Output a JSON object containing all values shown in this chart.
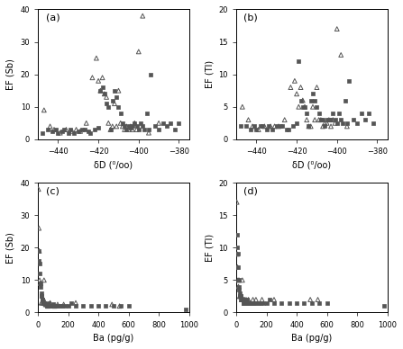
{
  "panel_a": {
    "label": "(a)",
    "xlabel": "δD (⁰/oo)",
    "ylabel": "EF (Sb)",
    "xlim": [
      -450,
      -375
    ],
    "ylim": [
      0,
      40
    ],
    "xticks": [
      -440,
      -420,
      -400,
      -380
    ],
    "yticks": [
      0,
      10,
      20,
      30,
      40
    ],
    "squares_x": [
      -448,
      -445,
      -443,
      -441,
      -440,
      -438,
      -437,
      -435,
      -434,
      -432,
      -430,
      -428,
      -427,
      -425,
      -424,
      -422,
      -420,
      -419,
      -418,
      -417,
      -416,
      -415,
      -414,
      -413,
      -412,
      -411,
      -410,
      -409,
      -408,
      -407,
      -406,
      -405,
      -404,
      -403,
      -402,
      -401,
      -400,
      -399,
      -398,
      -397,
      -396,
      -395,
      -394,
      -392,
      -390,
      -388,
      -386,
      -384,
      -382,
      -380
    ],
    "squares_y": [
      2,
      3,
      2.5,
      3,
      2,
      2.5,
      3,
      2,
      3,
      2,
      2.5,
      3,
      3,
      2.5,
      2,
      3,
      3.5,
      15,
      16,
      14,
      11,
      10,
      3,
      12,
      15,
      13,
      10,
      8,
      5,
      4,
      3,
      4,
      3.5,
      4,
      5,
      4,
      3,
      5,
      4,
      3,
      8,
      3,
      20,
      4,
      3,
      5,
      4,
      5,
      3,
      5
    ],
    "triangles_x": [
      -447,
      -444,
      -442,
      -439,
      -436,
      -433,
      -431,
      -429,
      -426,
      -423,
      -421,
      -420,
      -419,
      -418,
      -417,
      -416,
      -415,
      -414,
      -413,
      -412,
      -411,
      -410,
      -409,
      -408,
      -407,
      -406,
      -405,
      -404,
      -403,
      -402,
      -401,
      -400,
      -398,
      -395,
      -390
    ],
    "triangles_y": [
      9,
      4,
      3,
      2,
      3,
      2.5,
      3,
      2.5,
      5,
      19,
      25,
      18,
      15,
      19,
      14,
      13,
      5,
      3,
      4,
      11,
      4,
      15,
      5,
      4,
      3,
      4,
      3,
      4,
      3,
      5,
      3,
      27,
      38,
      2,
      5
    ]
  },
  "panel_b": {
    "label": "(b)",
    "xlabel": "δD (⁰/oo)",
    "ylabel": "EF (Tl)",
    "xlim": [
      -450,
      -375
    ],
    "ylim": [
      0,
      20
    ],
    "xticks": [
      -440,
      -420,
      -400,
      -380
    ],
    "yticks": [
      0,
      5,
      10,
      15,
      20
    ],
    "squares_x": [
      -448,
      -445,
      -443,
      -441,
      -440,
      -438,
      -437,
      -435,
      -434,
      -432,
      -430,
      -428,
      -427,
      -425,
      -424,
      -422,
      -420,
      -419,
      -418,
      -417,
      -416,
      -415,
      -414,
      -413,
      -412,
      -411,
      -410,
      -409,
      -408,
      -407,
      -406,
      -405,
      -404,
      -403,
      -402,
      -401,
      -400,
      -399,
      -398,
      -397,
      -396,
      -395,
      -394,
      -392,
      -390,
      -388,
      -386,
      -384,
      -382
    ],
    "squares_y": [
      2,
      2,
      1.5,
      2,
      1.5,
      2,
      2,
      1.5,
      2,
      1.5,
      2,
      2,
      2,
      1.5,
      1.5,
      2,
      2.5,
      12,
      6,
      5,
      5,
      4,
      2,
      6,
      7,
      6,
      5,
      4,
      3,
      3,
      2,
      3,
      3,
      3,
      4,
      3,
      2.5,
      4,
      3,
      2.5,
      6,
      2.5,
      9,
      3,
      2.5,
      4,
      3,
      4,
      2.5
    ],
    "triangles_x": [
      -447,
      -444,
      -442,
      -439,
      -436,
      -433,
      -431,
      -429,
      -426,
      -423,
      -421,
      -420,
      -419,
      -418,
      -417,
      -416,
      -415,
      -414,
      -413,
      -412,
      -411,
      -410,
      -409,
      -408,
      -407,
      -406,
      -405,
      -404,
      -403,
      -402,
      -401,
      -400,
      -398,
      -395
    ],
    "triangles_y": [
      5,
      3,
      2,
      1.5,
      2,
      2,
      2,
      2,
      3,
      8,
      9,
      7,
      5,
      8,
      6,
      5,
      3,
      2,
      2,
      5,
      3,
      8,
      3,
      3,
      2,
      2.5,
      2.5,
      3,
      2,
      3,
      2.5,
      17,
      13,
      2
    ]
  },
  "panel_c": {
    "label": "(c)",
    "xlabel": "Ba (pg/g)",
    "ylabel": "EF (Sb)",
    "xlim": [
      0,
      1000
    ],
    "ylim": [
      0,
      40
    ],
    "xticks": [
      0,
      200,
      400,
      600,
      800,
      1000
    ],
    "yticks": [
      0,
      10,
      20,
      30,
      40
    ],
    "squares_x": [
      5,
      8,
      10,
      12,
      15,
      18,
      20,
      22,
      25,
      28,
      30,
      32,
      35,
      38,
      40,
      42,
      45,
      50,
      55,
      60,
      65,
      70,
      75,
      80,
      90,
      100,
      110,
      120,
      130,
      150,
      160,
      180,
      200,
      220,
      250,
      300,
      350,
      400,
      450,
      500,
      550,
      600,
      980
    ],
    "squares_y": [
      19,
      16,
      15,
      12,
      9,
      8,
      6,
      5,
      5,
      4,
      4,
      3,
      3.5,
      3,
      3,
      3,
      2.5,
      2.5,
      2.5,
      2,
      2,
      3,
      2,
      2,
      2,
      2.5,
      2,
      2,
      2,
      2,
      2,
      2,
      2,
      3,
      2,
      2,
      2,
      2,
      2,
      2,
      2,
      2,
      1
    ],
    "triangles_x": [
      3,
      6,
      8,
      11,
      14,
      18,
      22,
      28,
      35,
      40,
      50,
      55,
      65,
      80,
      110,
      130,
      170,
      250,
      490,
      540
    ],
    "triangles_y": [
      38,
      26,
      19,
      10,
      9,
      9,
      3,
      3,
      3,
      10,
      2.5,
      2.5,
      2,
      3,
      2,
      2.5,
      2.5,
      3,
      2.5,
      2
    ]
  },
  "panel_d": {
    "label": "(d)",
    "xlabel": "Ba (pg/g)",
    "ylabel": "EF (Tl)",
    "xlim": [
      0,
      1000
    ],
    "ylim": [
      0,
      20
    ],
    "xticks": [
      0,
      200,
      400,
      600,
      800,
      1000
    ],
    "yticks": [
      0,
      5,
      10,
      15,
      20
    ],
    "squares_x": [
      5,
      8,
      10,
      12,
      15,
      18,
      20,
      22,
      25,
      28,
      30,
      32,
      35,
      38,
      40,
      42,
      45,
      50,
      55,
      60,
      65,
      70,
      75,
      80,
      90,
      100,
      110,
      120,
      130,
      150,
      160,
      180,
      200,
      220,
      250,
      300,
      350,
      400,
      450,
      500,
      550,
      600,
      980
    ],
    "squares_y": [
      12,
      10,
      9,
      7,
      5,
      4,
      3.5,
      3,
      2.5,
      2.5,
      2.5,
      2,
      2,
      2,
      2,
      2,
      1.5,
      1.5,
      1.5,
      1.5,
      1.5,
      2,
      1.5,
      1.5,
      1.5,
      1.5,
      1.5,
      1.5,
      1.5,
      1.5,
      1.5,
      1.5,
      1.5,
      2,
      1.5,
      1.5,
      1.5,
      1.5,
      1.5,
      1.5,
      1.5,
      1.5,
      1
    ],
    "triangles_x": [
      3,
      6,
      8,
      11,
      14,
      18,
      22,
      28,
      35,
      40,
      50,
      55,
      65,
      80,
      110,
      130,
      170,
      250,
      490,
      540
    ],
    "triangles_y": [
      17,
      9,
      7,
      5,
      4,
      5,
      2.5,
      2.5,
      2,
      5,
      2,
      2,
      2,
      2,
      2,
      2,
      2,
      2,
      2,
      2
    ]
  },
  "marker_color": "#555555",
  "bg_color": "#ffffff",
  "fontsize_label": 7,
  "fontsize_tick": 6,
  "fontsize_panel": 8
}
